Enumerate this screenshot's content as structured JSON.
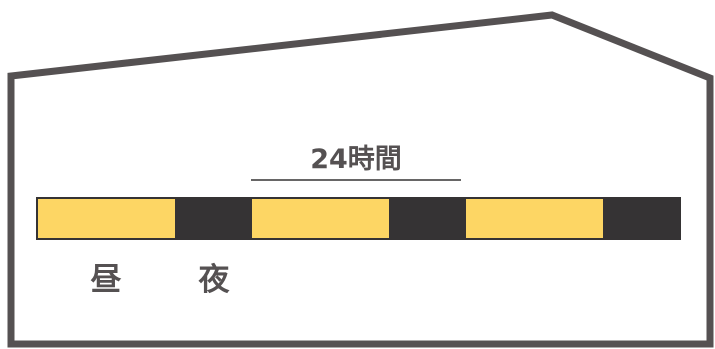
{
  "labels": {
    "span": "24時間",
    "day": "昼",
    "night": "夜"
  },
  "cycle": {
    "hours_per_period": 24,
    "segments": [
      {
        "kind": "day"
      },
      {
        "kind": "night"
      },
      {
        "kind": "day"
      },
      {
        "kind": "night"
      },
      {
        "kind": "day"
      },
      {
        "kind": "night"
      }
    ]
  },
  "colors": {
    "outline": "#555152",
    "day": "#fdd664",
    "night": "#353334",
    "text": "#555152",
    "bracket": "#353334"
  }
}
